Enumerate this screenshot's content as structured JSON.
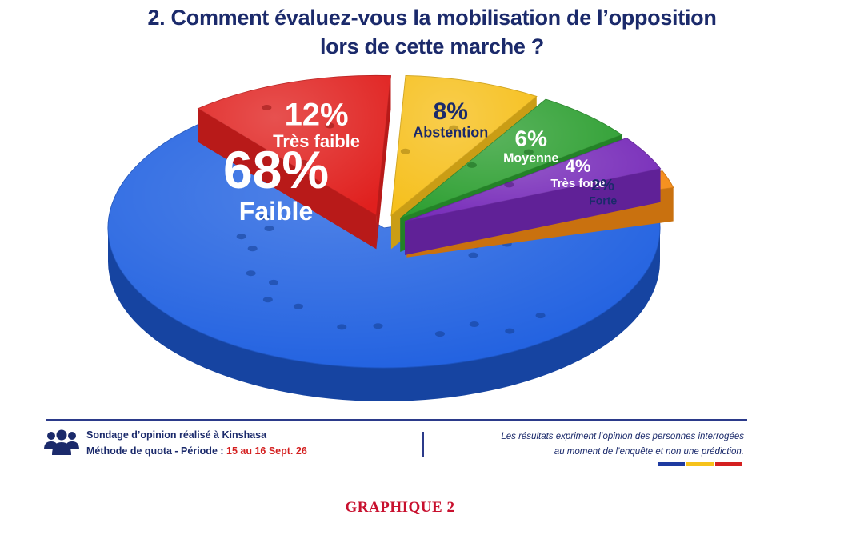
{
  "title": {
    "line1": "2.  Comment évaluez-vous la mobilisation de l’opposition",
    "line2": "lors de cette marche ?"
  },
  "chart_data": {
    "type": "pie",
    "title": "2.  Comment évaluez-vous la mobilisation de l’opposition lors de cette marche ?",
    "slices": [
      {
        "label": "Faible",
        "value": 68,
        "display": "68%",
        "color": "#1e5fe0"
      },
      {
        "label": "Très faible",
        "value": 12,
        "display": "12%",
        "color": "#e0201e"
      },
      {
        "label": "Abstention",
        "value": 8,
        "display": "8%",
        "color": "#f6bf1a"
      },
      {
        "label": "Moyenne",
        "value": 6,
        "display": "6%",
        "color": "#2b9e2f"
      },
      {
        "label": "Très forte",
        "value": 4,
        "display": "4%",
        "color": "#7528b8"
      },
      {
        "label": "Forte",
        "value": 2,
        "display": "2%",
        "color": "#f58a12"
      }
    ]
  },
  "footer": {
    "icon": "people-icon",
    "survey_line": "Sondage d’opinion réalisé à Kinshasa",
    "method_prefix": "Méthode de quota - Période : ",
    "period": "15 au 16 Sept. 26",
    "disclaimer_line1": "Les résultats expriment l’opinion des personnes interrogées",
    "disclaimer_line2": "au moment de l’enquête et non une prédiction.",
    "flag_colors": [
      "#1e3aa0",
      "#f6c21a",
      "#d42020"
    ]
  },
  "caption": "GRAPHIQUE 2"
}
